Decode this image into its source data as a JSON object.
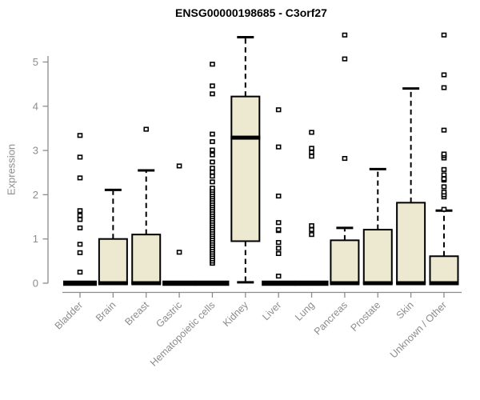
{
  "chart_data": {
    "type": "boxplot",
    "title": "ENSG00000198685 - C3orf27",
    "ylabel": "Expression",
    "xlabel": "",
    "yticks": [
      0,
      1,
      2,
      3,
      4,
      5
    ],
    "ylim": [
      0,
      5.7
    ],
    "grid": false,
    "legend": false,
    "categories": [
      "Bladder",
      "Brain",
      "Breast",
      "Gastric",
      "Hematopoietic cells",
      "Kidney",
      "Liver",
      "Lung",
      "Pancreas",
      "Prostate",
      "Skin",
      "Unknown / Other"
    ],
    "series": [
      {
        "name": "Bladder",
        "min": 0,
        "q1": 0,
        "median": 0,
        "q3": 0,
        "max": 0,
        "outliers": [
          0.25,
          0.69,
          0.88,
          1.25,
          1.44,
          1.53,
          1.64,
          2.38,
          2.85,
          3.34
        ]
      },
      {
        "name": "Brain",
        "min": 0,
        "q1": 0,
        "median": 0,
        "q3": 1.0,
        "max": 2.11,
        "outliers": []
      },
      {
        "name": "Breast",
        "min": 0,
        "q1": 0,
        "median": 0,
        "q3": 1.1,
        "max": 2.55,
        "outliers": [
          3.48
        ]
      },
      {
        "name": "Gastric",
        "min": 0,
        "q1": 0,
        "median": 0,
        "q3": 0,
        "max": 0,
        "outliers": [
          0.7,
          2.65
        ]
      },
      {
        "name": "Hematopoietic cells",
        "min": 0,
        "q1": 0,
        "median": 0,
        "q3": 0,
        "max": 0,
        "outliers": [
          0.45,
          0.5,
          0.55,
          0.6,
          0.65,
          0.7,
          0.75,
          0.8,
          0.85,
          0.9,
          0.95,
          1.0,
          1.05,
          1.1,
          1.15,
          1.2,
          1.25,
          1.3,
          1.35,
          1.4,
          1.45,
          1.5,
          1.55,
          1.6,
          1.65,
          1.7,
          1.75,
          1.8,
          1.85,
          1.9,
          1.95,
          2.0,
          2.05,
          2.1,
          2.15,
          2.29,
          2.42,
          2.51,
          2.6,
          2.74,
          2.9,
          3.01,
          3.2,
          3.37,
          4.28,
          4.46,
          4.95
        ]
      },
      {
        "name": "Kidney",
        "min": 0.02,
        "q1": 0.95,
        "median": 3.29,
        "q3": 4.22,
        "max": 5.56,
        "outliers": []
      },
      {
        "name": "Liver",
        "min": 0,
        "q1": 0,
        "median": 0,
        "q3": 0,
        "max": 0,
        "outliers": [
          0.16,
          0.67,
          0.79,
          0.92,
          1.19,
          1.21,
          1.37,
          1.97,
          3.08,
          3.92
        ]
      },
      {
        "name": "Lung",
        "min": 0,
        "q1": 0,
        "median": 0,
        "q3": 0,
        "max": 0,
        "outliers": [
          1.1,
          1.21,
          1.3,
          2.87,
          2.96,
          3.05,
          3.41
        ]
      },
      {
        "name": "Pancreas",
        "min": 0,
        "q1": 0,
        "median": 0,
        "q3": 0.97,
        "max": 1.25,
        "outliers": [
          2.82,
          5.07,
          5.61
        ]
      },
      {
        "name": "Prostate",
        "min": 0,
        "q1": 0,
        "median": 0,
        "q3": 1.21,
        "max": 2.58,
        "outliers": []
      },
      {
        "name": "Skin",
        "min": 0,
        "q1": 0,
        "median": 0,
        "q3": 1.82,
        "max": 4.4,
        "outliers": []
      },
      {
        "name": "Unknown / Other",
        "min": 0,
        "q1": 0,
        "median": 0,
        "q3": 0.61,
        "max": 1.64,
        "outliers": [
          1.67,
          1.95,
          2.0,
          2.06,
          2.18,
          2.33,
          2.36,
          2.45,
          2.57,
          2.83,
          2.88,
          2.92,
          3.46,
          4.42,
          4.71,
          5.61
        ]
      }
    ],
    "style": {
      "box_fill": "#EDE9D0",
      "box_stroke": "#000000",
      "median_color": "#000000",
      "whisker_color": "#000000",
      "outlier_fill": "#FFFFFF",
      "outlier_stroke": "#000000",
      "axis_color": "#8C8C8C",
      "title_color": "#000000",
      "background": "#FFFFFF"
    }
  }
}
